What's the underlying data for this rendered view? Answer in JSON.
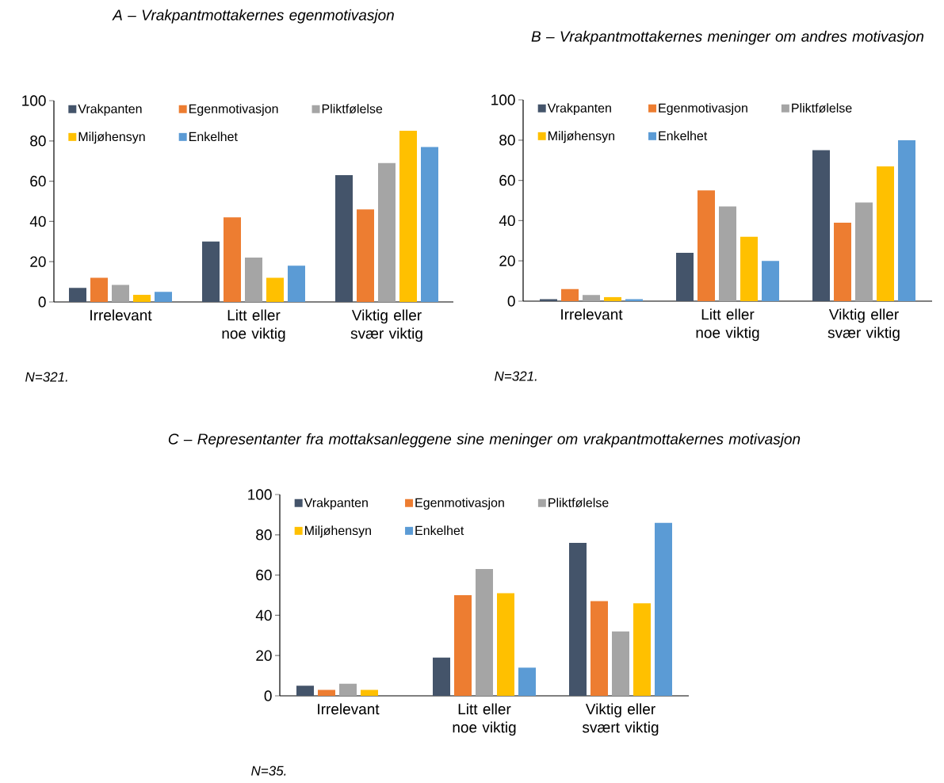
{
  "chart_data": [
    {
      "type": "bar",
      "title": "A – Vrakpantmottakernes egenmotivasjon",
      "categories": [
        "Irrelevant",
        "Litt eller noe viktig",
        "Viktig eller svær viktig"
      ],
      "ylim": [
        0,
        100
      ],
      "yticks": [
        0,
        20,
        40,
        60,
        80,
        100
      ],
      "legend": "top",
      "annotations": [
        "N=321."
      ],
      "series": [
        {
          "name": "Vrakpanten",
          "color": "#44546a",
          "values": [
            7,
            30,
            63
          ]
        },
        {
          "name": "Egenmotivasjon",
          "color": "#ed7d31",
          "values": [
            12,
            42,
            46
          ]
        },
        {
          "name": "Pliktfølelse",
          "color": "#a5a5a5",
          "values": [
            8.5,
            22,
            69
          ]
        },
        {
          "name": "Miljøhensyn",
          "color": "#ffc000",
          "values": [
            3.5,
            12,
            85
          ]
        },
        {
          "name": "Enkelhet",
          "color": "#5b9bd5",
          "values": [
            5,
            18,
            77
          ]
        }
      ]
    },
    {
      "type": "bar",
      "title": "B – Vrakpantmottakernes meninger om andres motivasjon",
      "categories": [
        "Irrelevant",
        "Litt eller noe viktig",
        "Viktig eller svær viktig"
      ],
      "ylim": [
        0,
        100
      ],
      "yticks": [
        0,
        20,
        40,
        60,
        80,
        100
      ],
      "legend": "top",
      "annotations": [
        "N=321."
      ],
      "series": [
        {
          "name": "Vrakpanten",
          "color": "#44546a",
          "values": [
            1,
            24,
            75
          ]
        },
        {
          "name": "Egenmotivasjon",
          "color": "#ed7d31",
          "values": [
            6,
            55,
            39
          ]
        },
        {
          "name": "Pliktfølelse",
          "color": "#a5a5a5",
          "values": [
            3,
            47,
            49
          ]
        },
        {
          "name": "Miljøhensyn",
          "color": "#ffc000",
          "values": [
            2,
            32,
            67
          ]
        },
        {
          "name": "Enkelhet",
          "color": "#5b9bd5",
          "values": [
            1,
            20,
            80
          ]
        }
      ]
    },
    {
      "type": "bar",
      "title": "C – Representanter fra mottaksanleggene sine meninger om vrakpantmottakernes motivasjon",
      "categories": [
        "Irrelevant",
        "Litt eller noe viktig",
        "Viktig eller svært viktig"
      ],
      "ylim": [
        0,
        100
      ],
      "yticks": [
        0,
        20,
        40,
        60,
        80,
        100
      ],
      "legend": "top",
      "annotations": [
        "N=35."
      ],
      "series": [
        {
          "name": "Vrakpanten",
          "color": "#44546a",
          "values": [
            5,
            19,
            76
          ]
        },
        {
          "name": "Egenmotivasjon",
          "color": "#ed7d31",
          "values": [
            3,
            50,
            47
          ]
        },
        {
          "name": "Pliktfølelse",
          "color": "#a5a5a5",
          "values": [
            6,
            63,
            32
          ]
        },
        {
          "name": "Miljøhensyn",
          "color": "#ffc000",
          "values": [
            3,
            51,
            46
          ]
        },
        {
          "name": "Enkelhet",
          "color": "#5b9bd5",
          "values": [
            0,
            14,
            86
          ]
        }
      ]
    }
  ]
}
